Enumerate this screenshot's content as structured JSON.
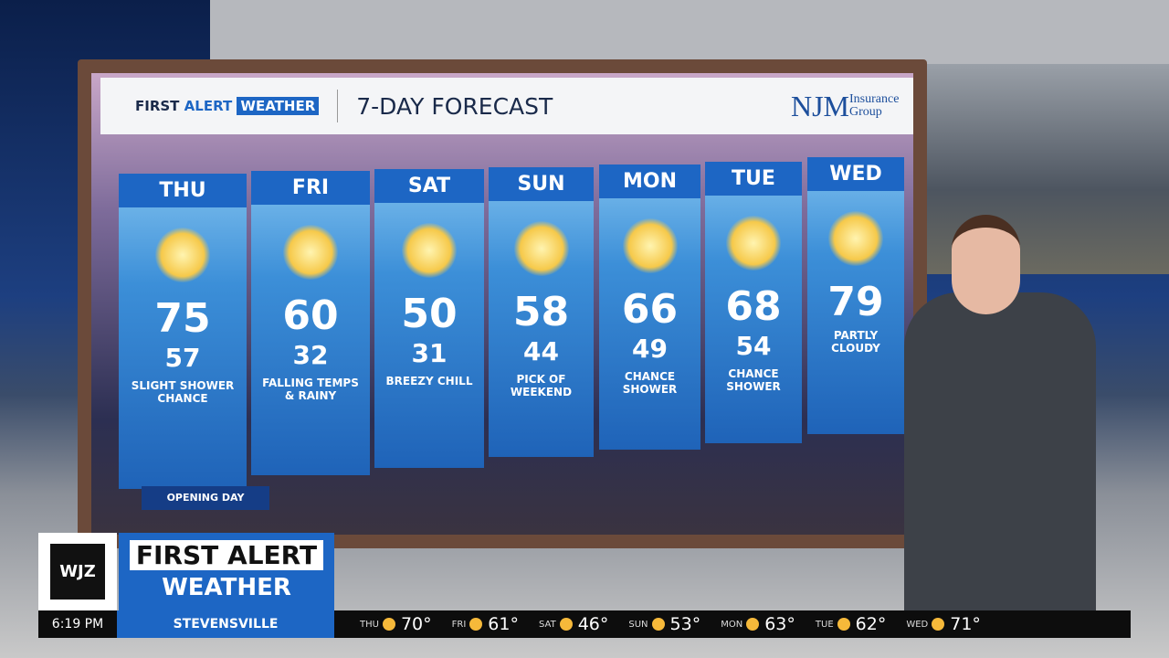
{
  "header": {
    "brand_first": "FIRST",
    "brand_alert": "ALERT",
    "brand_weather": "WEATHER",
    "title": "7-DAY FORECAST",
    "sponsor_name": "NJM",
    "sponsor_sub": "Insurance Group"
  },
  "days": [
    {
      "day": "THU",
      "high": 75,
      "low": 57,
      "note": "SLIGHT SHOWER CHANCE"
    },
    {
      "day": "FRI",
      "high": 60,
      "low": 32,
      "note": "FALLING TEMPS & RAINY"
    },
    {
      "day": "SAT",
      "high": 50,
      "low": 31,
      "note": "BREEZY CHILL"
    },
    {
      "day": "SUN",
      "high": 58,
      "low": 44,
      "note": "PICK OF WEEKEND"
    },
    {
      "day": "MON",
      "high": 66,
      "low": 49,
      "note": "CHANCE SHOWER"
    },
    {
      "day": "TUE",
      "high": 68,
      "low": 54,
      "note": "CHANCE SHOWER"
    },
    {
      "day": "WED",
      "high": 79,
      "note": "PARTLY CLOUDY"
    }
  ],
  "badge": "OPENING DAY",
  "lower_third": {
    "station": "WJZ",
    "line1": "FIRST ALERT",
    "line2": "WEATHER"
  },
  "ticker": {
    "time": "6:19 PM",
    "location": "STEVENSVILLE",
    "items": [
      {
        "day": "THU",
        "temp": "70°"
      },
      {
        "day": "FRI",
        "temp": "61°"
      },
      {
        "day": "SAT",
        "temp": "46°"
      },
      {
        "day": "SUN",
        "temp": "53°"
      },
      {
        "day": "MON",
        "temp": "63°"
      },
      {
        "day": "TUE",
        "temp": "62°"
      },
      {
        "day": "WED",
        "temp": "71°"
      }
    ]
  }
}
